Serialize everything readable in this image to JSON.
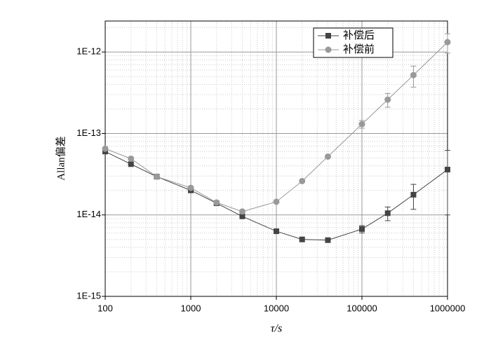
{
  "chart_data": {
    "type": "line",
    "xlabel": "τ/s",
    "ylabel": "Allan偏差",
    "x": [
      100,
      200,
      400,
      1000,
      2000,
      4000,
      10000,
      20000,
      40000,
      100000,
      200000,
      400000,
      1000000
    ],
    "series": [
      {
        "name": "补偿后",
        "color": "#444444",
        "marker": "square",
        "values": [
          6e-14,
          4.2e-14,
          2.95e-14,
          2e-14,
          1.39e-14,
          9.6e-15,
          6.3e-15,
          5e-15,
          4.9e-15,
          6.7e-15,
          1.05e-14,
          1.77e-14,
          3.6e-14
        ],
        "errors": [
          0,
          0,
          0,
          0,
          0,
          0,
          0,
          0,
          0,
          7e-16,
          2e-15,
          6e-15,
          2.6e-14
        ]
      },
      {
        "name": "补偿前",
        "color": "#999999",
        "marker": "circle",
        "values": [
          6.5e-14,
          4.9e-14,
          2.95e-14,
          2.15e-14,
          1.42e-14,
          1.1e-14,
          1.45e-14,
          2.6e-14,
          5.2e-14,
          1.3e-13,
          2.6e-13,
          5.2e-13,
          1.32e-12
        ],
        "errors": [
          0,
          0,
          0,
          0,
          0,
          0,
          0,
          0,
          0,
          1.4e-14,
          5e-14,
          1.5e-13,
          3.5e-13
        ]
      }
    ],
    "xscale": "log",
    "yscale": "log",
    "xlim": [
      100,
      1000000
    ],
    "ylim": [
      1e-15,
      2.4e-12
    ],
    "xticks": [
      100,
      1000,
      10000,
      100000,
      1000000
    ],
    "yticks": [
      {
        "value": 1e-15,
        "label": "1E-15"
      },
      {
        "value": 1e-14,
        "label": "1E-14"
      },
      {
        "value": 1e-13,
        "label": "1E-13"
      },
      {
        "value": 1e-12,
        "label": "1E-12"
      }
    ],
    "grid": true,
    "minor_grid": true,
    "legend": "upper right"
  }
}
